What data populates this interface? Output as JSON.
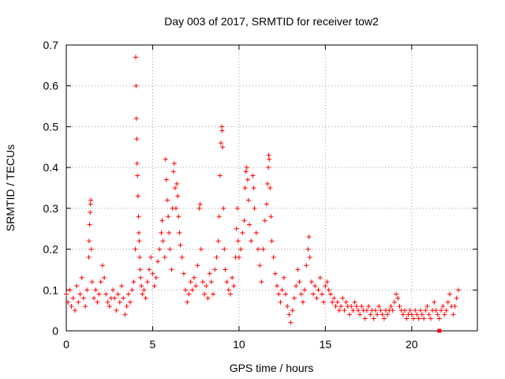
{
  "chart_data": {
    "type": "scatter",
    "title": "Day 003 of 2017, SRMTID for receiver tow2",
    "xlabel": "GPS time / hours",
    "ylabel": "SRMTID / TECUs",
    "xlim": [
      0,
      23.8
    ],
    "ylim": [
      0,
      0.7
    ],
    "xticks": [
      0,
      5,
      10,
      15,
      20
    ],
    "xtick_labels": [
      "0",
      "5",
      "10",
      "15",
      "20"
    ],
    "yticks": [
      0,
      0.1,
      0.2,
      0.3,
      0.4,
      0.5,
      0.6,
      0.7
    ],
    "ytick_labels": [
      "0",
      "0.1",
      "0.2",
      "0.3",
      "0.4",
      "0.5",
      "0.6",
      "0.7"
    ],
    "grid": true,
    "marker": "plus",
    "series": [
      {
        "name": "SRMTID",
        "color": "#ff0000",
        "points": [
          [
            0.0,
            0.09
          ],
          [
            0.1,
            0.07
          ],
          [
            0.2,
            0.1
          ],
          [
            0.3,
            0.06
          ],
          [
            0.4,
            0.08
          ],
          [
            0.5,
            0.05
          ],
          [
            0.6,
            0.11
          ],
          [
            0.7,
            0.07
          ],
          [
            0.8,
            0.09
          ],
          [
            0.9,
            0.13
          ],
          [
            1.0,
            0.08
          ],
          [
            1.1,
            0.06
          ],
          [
            1.2,
            0.1
          ],
          [
            1.3,
            0.18
          ],
          [
            1.32,
            0.22
          ],
          [
            1.35,
            0.26
          ],
          [
            1.38,
            0.29
          ],
          [
            1.4,
            0.31
          ],
          [
            1.42,
            0.32
          ],
          [
            1.45,
            0.2
          ],
          [
            1.5,
            0.12
          ],
          [
            1.6,
            0.08
          ],
          [
            1.7,
            0.1
          ],
          [
            1.8,
            0.07
          ],
          [
            1.9,
            0.09
          ],
          [
            2.0,
            0.12
          ],
          [
            2.1,
            0.16
          ],
          [
            2.2,
            0.13
          ],
          [
            2.3,
            0.09
          ],
          [
            2.4,
            0.07
          ],
          [
            2.5,
            0.06
          ],
          [
            2.6,
            0.08
          ],
          [
            2.7,
            0.1
          ],
          [
            2.8,
            0.08
          ],
          [
            2.9,
            0.05
          ],
          [
            3.0,
            0.09
          ],
          [
            3.1,
            0.07
          ],
          [
            3.2,
            0.11
          ],
          [
            3.3,
            0.08
          ],
          [
            3.4,
            0.04
          ],
          [
            3.5,
            0.06
          ],
          [
            3.6,
            0.09
          ],
          [
            3.7,
            0.07
          ],
          [
            3.8,
            0.1
          ],
          [
            3.9,
            0.12
          ],
          [
            4.0,
            0.2
          ],
          [
            4.02,
            0.67
          ],
          [
            4.04,
            0.6
          ],
          [
            4.06,
            0.52
          ],
          [
            4.08,
            0.47
          ],
          [
            4.1,
            0.41
          ],
          [
            4.12,
            0.38
          ],
          [
            4.15,
            0.33
          ],
          [
            4.18,
            0.28
          ],
          [
            4.2,
            0.24
          ],
          [
            4.22,
            0.22
          ],
          [
            4.25,
            0.18
          ],
          [
            4.28,
            0.15
          ],
          [
            4.3,
            0.13
          ],
          [
            4.35,
            0.11
          ],
          [
            4.4,
            0.09
          ],
          [
            4.5,
            0.1
          ],
          [
            4.6,
            0.08
          ],
          [
            4.7,
            0.12
          ],
          [
            4.8,
            0.15
          ],
          [
            4.9,
            0.18
          ],
          [
            5.0,
            0.14
          ],
          [
            5.1,
            0.11
          ],
          [
            5.2,
            0.13
          ],
          [
            5.3,
            0.17
          ],
          [
            5.4,
            0.2
          ],
          [
            5.5,
            0.24
          ],
          [
            5.55,
            0.27
          ],
          [
            5.6,
            0.22
          ],
          [
            5.7,
            0.18
          ],
          [
            5.75,
            0.42
          ],
          [
            5.8,
            0.37
          ],
          [
            5.85,
            0.32
          ],
          [
            5.9,
            0.28
          ],
          [
            5.95,
            0.24
          ],
          [
            6.0,
            0.2
          ],
          [
            6.1,
            0.15
          ],
          [
            6.15,
            0.3
          ],
          [
            6.2,
            0.39
          ],
          [
            6.25,
            0.41
          ],
          [
            6.3,
            0.35
          ],
          [
            6.35,
            0.3
          ],
          [
            6.4,
            0.36
          ],
          [
            6.45,
            0.33
          ],
          [
            6.5,
            0.28
          ],
          [
            6.55,
            0.24
          ],
          [
            6.6,
            0.21
          ],
          [
            6.7,
            0.18
          ],
          [
            6.8,
            0.14
          ],
          [
            6.9,
            0.1
          ],
          [
            7.0,
            0.07
          ],
          [
            7.1,
            0.09
          ],
          [
            7.2,
            0.12
          ],
          [
            7.3,
            0.1
          ],
          [
            7.4,
            0.13
          ],
          [
            7.5,
            0.11
          ],
          [
            7.6,
            0.16
          ],
          [
            7.7,
            0.3
          ],
          [
            7.75,
            0.31
          ],
          [
            7.8,
            0.2
          ],
          [
            7.9,
            0.12
          ],
          [
            8.0,
            0.09
          ],
          [
            8.1,
            0.11
          ],
          [
            8.2,
            0.08
          ],
          [
            8.3,
            0.14
          ],
          [
            8.4,
            0.12
          ],
          [
            8.5,
            0.09
          ],
          [
            8.6,
            0.15
          ],
          [
            8.7,
            0.18
          ],
          [
            8.8,
            0.22
          ],
          [
            8.85,
            0.28
          ],
          [
            8.9,
            0.38
          ],
          [
            8.95,
            0.46
          ],
          [
            9.0,
            0.5
          ],
          [
            9.02,
            0.49
          ],
          [
            9.05,
            0.45
          ],
          [
            9.1,
            0.3
          ],
          [
            9.15,
            0.2
          ],
          [
            9.2,
            0.15
          ],
          [
            9.3,
            0.12
          ],
          [
            9.4,
            0.1
          ],
          [
            9.5,
            0.09
          ],
          [
            9.6,
            0.13
          ],
          [
            9.7,
            0.11
          ],
          [
            9.8,
            0.18
          ],
          [
            9.85,
            0.25
          ],
          [
            9.9,
            0.3
          ],
          [
            9.95,
            0.22
          ],
          [
            10.0,
            0.18
          ],
          [
            10.1,
            0.2
          ],
          [
            10.2,
            0.24
          ],
          [
            10.3,
            0.27
          ],
          [
            10.35,
            0.35
          ],
          [
            10.4,
            0.39
          ],
          [
            10.45,
            0.4
          ],
          [
            10.5,
            0.37
          ],
          [
            10.55,
            0.32
          ],
          [
            10.6,
            0.26
          ],
          [
            10.7,
            0.22
          ],
          [
            10.8,
            0.38
          ],
          [
            10.85,
            0.35
          ],
          [
            10.9,
            0.3
          ],
          [
            11.0,
            0.24
          ],
          [
            11.1,
            0.2
          ],
          [
            11.2,
            0.16
          ],
          [
            11.3,
            0.12
          ],
          [
            11.4,
            0.2
          ],
          [
            11.5,
            0.27
          ],
          [
            11.6,
            0.31
          ],
          [
            11.65,
            0.36
          ],
          [
            11.7,
            0.4
          ],
          [
            11.72,
            0.43
          ],
          [
            11.75,
            0.42
          ],
          [
            11.8,
            0.35
          ],
          [
            11.85,
            0.28
          ],
          [
            11.9,
            0.22
          ],
          [
            12.0,
            0.18
          ],
          [
            12.1,
            0.14
          ],
          [
            12.2,
            0.11
          ],
          [
            12.3,
            0.09
          ],
          [
            12.4,
            0.07
          ],
          [
            12.5,
            0.1
          ],
          [
            12.6,
            0.13
          ],
          [
            12.7,
            0.09
          ],
          [
            12.8,
            0.06
          ],
          [
            12.9,
            0.04
          ],
          [
            13.0,
            0.02
          ],
          [
            13.1,
            0.05
          ],
          [
            13.2,
            0.08
          ],
          [
            13.3,
            0.11
          ],
          [
            13.4,
            0.15
          ],
          [
            13.5,
            0.12
          ],
          [
            13.6,
            0.09
          ],
          [
            13.7,
            0.07
          ],
          [
            13.8,
            0.1
          ],
          [
            13.9,
            0.16
          ],
          [
            14.0,
            0.2
          ],
          [
            14.05,
            0.23
          ],
          [
            14.1,
            0.18
          ],
          [
            14.2,
            0.12
          ],
          [
            14.3,
            0.09
          ],
          [
            14.4,
            0.11
          ],
          [
            14.5,
            0.08
          ],
          [
            14.6,
            0.1
          ],
          [
            14.7,
            0.13
          ],
          [
            14.8,
            0.09
          ],
          [
            14.9,
            0.07
          ],
          [
            15.0,
            0.11
          ],
          [
            15.1,
            0.12
          ],
          [
            15.2,
            0.1
          ],
          [
            15.3,
            0.09
          ],
          [
            15.4,
            0.07
          ],
          [
            15.5,
            0.08
          ],
          [
            15.6,
            0.06
          ],
          [
            15.7,
            0.07
          ],
          [
            15.8,
            0.05
          ],
          [
            15.9,
            0.06
          ],
          [
            16.0,
            0.08
          ],
          [
            16.1,
            0.05
          ],
          [
            16.2,
            0.07
          ],
          [
            16.3,
            0.06
          ],
          [
            16.4,
            0.04
          ],
          [
            16.5,
            0.06
          ],
          [
            16.6,
            0.05
          ],
          [
            16.7,
            0.07
          ],
          [
            16.8,
            0.06
          ],
          [
            16.9,
            0.05
          ],
          [
            17.0,
            0.04
          ],
          [
            17.1,
            0.06
          ],
          [
            17.2,
            0.05
          ],
          [
            17.3,
            0.03
          ],
          [
            17.4,
            0.05
          ],
          [
            17.5,
            0.06
          ],
          [
            17.6,
            0.04
          ],
          [
            17.7,
            0.05
          ],
          [
            17.8,
            0.03
          ],
          [
            17.9,
            0.05
          ],
          [
            18.0,
            0.04
          ],
          [
            18.1,
            0.06
          ],
          [
            18.2,
            0.05
          ],
          [
            18.3,
            0.04
          ],
          [
            18.4,
            0.03
          ],
          [
            18.5,
            0.05
          ],
          [
            18.6,
            0.04
          ],
          [
            18.7,
            0.05
          ],
          [
            18.8,
            0.06
          ],
          [
            18.9,
            0.05
          ],
          [
            19.0,
            0.07
          ],
          [
            19.1,
            0.09
          ],
          [
            19.2,
            0.08
          ],
          [
            19.3,
            0.06
          ],
          [
            19.4,
            0.05
          ],
          [
            19.5,
            0.04
          ],
          [
            19.6,
            0.05
          ],
          [
            19.7,
            0.03
          ],
          [
            19.8,
            0.04
          ],
          [
            19.9,
            0.05
          ],
          [
            20.0,
            0.04
          ],
          [
            20.1,
            0.03
          ],
          [
            20.2,
            0.05
          ],
          [
            20.3,
            0.04
          ],
          [
            20.4,
            0.03
          ],
          [
            20.5,
            0.05
          ],
          [
            20.6,
            0.04
          ],
          [
            20.7,
            0.03
          ],
          [
            20.8,
            0.05
          ],
          [
            20.9,
            0.06
          ],
          [
            21.0,
            0.04
          ],
          [
            21.1,
            0.03
          ],
          [
            21.2,
            0.05
          ],
          [
            21.3,
            0.07
          ],
          [
            21.4,
            0.05
          ],
          [
            21.5,
            0.04
          ],
          [
            21.6,
            0.03
          ],
          [
            21.7,
            0.05
          ],
          [
            21.8,
            0.06
          ],
          [
            21.9,
            0.04
          ],
          [
            22.0,
            0.05
          ],
          [
            22.1,
            0.07
          ],
          [
            22.2,
            0.09
          ],
          [
            22.3,
            0.06
          ],
          [
            22.4,
            0.04
          ],
          [
            22.5,
            0.06
          ],
          [
            22.6,
            0.08
          ],
          [
            22.7,
            0.1
          ]
        ]
      }
    ],
    "outliers": [
      [
        21.6,
        0.0
      ]
    ]
  }
}
